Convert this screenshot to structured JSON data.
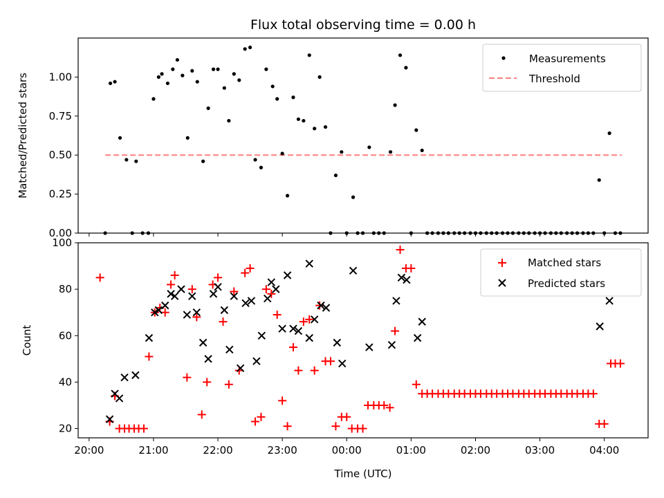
{
  "figure": {
    "title": "Flux total observing time = 0.00 h",
    "xlabel": "Time (UTC)",
    "x_ticks": [
      {
        "h": 20,
        "label": "20:00"
      },
      {
        "h": 21,
        "label": "21:00"
      },
      {
        "h": 22,
        "label": "22:00"
      },
      {
        "h": 23,
        "label": "23:00"
      },
      {
        "h": 24,
        "label": "00:00"
      },
      {
        "h": 25,
        "label": "01:00"
      },
      {
        "h": 26,
        "label": "02:00"
      },
      {
        "h": 27,
        "label": "03:00"
      },
      {
        "h": 28,
        "label": "04:00"
      }
    ],
    "xlim": [
      19.83,
      28.68
    ]
  },
  "colors": {
    "measurements": "#000000",
    "threshold": "#ff7f7f",
    "matched": "#ff0000",
    "predicted": "#000000"
  },
  "chart_data": [
    {
      "type": "scatter",
      "ylabel": "Matched/Predicted stars",
      "ylim": [
        0,
        1.25
      ],
      "y_ticks": [
        {
          "v": 0,
          "label": "0.00"
        },
        {
          "v": 0.25,
          "label": "0.25"
        },
        {
          "v": 0.5,
          "label": "0.50"
        },
        {
          "v": 0.75,
          "label": "0.75"
        },
        {
          "v": 1.0,
          "label": "1.00"
        }
      ],
      "legend_position": "top-right",
      "threshold": {
        "name": "Threshold",
        "value": 0.5,
        "x_range": [
          20.25,
          28.27
        ]
      },
      "series": [
        {
          "name": "Measurements",
          "marker": "dot",
          "points": [
            [
              20.25,
              0.0
            ],
            [
              20.33,
              0.96
            ],
            [
              20.4,
              0.97
            ],
            [
              20.48,
              0.61
            ],
            [
              20.58,
              0.47
            ],
            [
              20.67,
              0.0
            ],
            [
              20.73,
              0.46
            ],
            [
              20.83,
              0.0
            ],
            [
              20.92,
              0.0
            ],
            [
              21.0,
              0.86
            ],
            [
              21.08,
              1.0
            ],
            [
              21.13,
              1.02
            ],
            [
              21.22,
              0.96
            ],
            [
              21.3,
              1.05
            ],
            [
              21.37,
              1.11
            ],
            [
              21.45,
              1.01
            ],
            [
              21.53,
              0.61
            ],
            [
              21.6,
              1.04
            ],
            [
              21.68,
              0.97
            ],
            [
              21.77,
              0.46
            ],
            [
              21.85,
              0.8
            ],
            [
              21.93,
              1.05
            ],
            [
              22.0,
              1.05
            ],
            [
              22.1,
              0.93
            ],
            [
              22.17,
              0.72
            ],
            [
              22.25,
              1.02
            ],
            [
              22.33,
              0.98
            ],
            [
              22.42,
              1.18
            ],
            [
              22.5,
              1.19
            ],
            [
              22.58,
              0.47
            ],
            [
              22.67,
              0.42
            ],
            [
              22.75,
              1.05
            ],
            [
              22.85,
              0.94
            ],
            [
              22.92,
              0.86
            ],
            [
              23.0,
              0.51
            ],
            [
              23.08,
              0.24
            ],
            [
              23.17,
              0.87
            ],
            [
              23.25,
              0.73
            ],
            [
              23.33,
              0.72
            ],
            [
              23.42,
              1.14
            ],
            [
              23.5,
              0.67
            ],
            [
              23.58,
              1.0
            ],
            [
              23.67,
              0.68
            ],
            [
              23.75,
              0.0
            ],
            [
              23.83,
              0.37
            ],
            [
              23.92,
              0.52
            ],
            [
              24.0,
              0.0
            ],
            [
              24.1,
              0.23
            ],
            [
              24.17,
              0.0
            ],
            [
              24.25,
              0.0
            ],
            [
              24.35,
              0.55
            ],
            [
              24.42,
              0.0
            ],
            [
              24.5,
              0.0
            ],
            [
              24.58,
              0.0
            ],
            [
              24.68,
              0.52
            ],
            [
              24.75,
              0.82
            ],
            [
              24.83,
              1.14
            ],
            [
              24.92,
              1.06
            ],
            [
              25.0,
              0.0
            ],
            [
              25.08,
              0.66
            ],
            [
              25.17,
              0.53
            ],
            [
              25.25,
              0.0
            ],
            [
              25.33,
              0.0
            ],
            [
              25.42,
              0.0
            ],
            [
              25.5,
              0.0
            ],
            [
              25.58,
              0.0
            ],
            [
              25.67,
              0.0
            ],
            [
              25.75,
              0.0
            ],
            [
              25.83,
              0.0
            ],
            [
              25.92,
              0.0
            ],
            [
              26.0,
              0.0
            ],
            [
              26.08,
              0.0
            ],
            [
              26.17,
              0.0
            ],
            [
              26.25,
              0.0
            ],
            [
              26.33,
              0.0
            ],
            [
              26.42,
              0.0
            ],
            [
              26.5,
              0.0
            ],
            [
              26.58,
              0.0
            ],
            [
              26.67,
              0.0
            ],
            [
              26.75,
              0.0
            ],
            [
              26.83,
              0.0
            ],
            [
              26.92,
              0.0
            ],
            [
              27.0,
              0.0
            ],
            [
              27.08,
              0.0
            ],
            [
              27.17,
              0.0
            ],
            [
              27.25,
              0.0
            ],
            [
              27.33,
              0.0
            ],
            [
              27.42,
              0.0
            ],
            [
              27.5,
              0.0
            ],
            [
              27.58,
              0.0
            ],
            [
              27.67,
              0.0
            ],
            [
              27.75,
              0.0
            ],
            [
              27.83,
              0.0
            ],
            [
              27.92,
              0.34
            ],
            [
              28.0,
              0.0
            ],
            [
              28.08,
              0.64
            ],
            [
              28.17,
              0.0
            ],
            [
              28.25,
              0.0
            ]
          ]
        }
      ]
    },
    {
      "type": "scatter",
      "ylabel": "Count",
      "ylim": [
        16,
        100
      ],
      "y_ticks": [
        {
          "v": 20,
          "label": "20"
        },
        {
          "v": 40,
          "label": "40"
        },
        {
          "v": 60,
          "label": "60"
        },
        {
          "v": 80,
          "label": "80"
        },
        {
          "v": 100,
          "label": "100"
        }
      ],
      "legend_position": "top-right",
      "series": [
        {
          "name": "Matched stars",
          "marker": "plus",
          "points": [
            [
              20.17,
              85
            ],
            [
              20.32,
              23
            ],
            [
              20.4,
              34
            ],
            [
              20.47,
              20
            ],
            [
              20.55,
              20
            ],
            [
              20.62,
              20
            ],
            [
              20.7,
              20
            ],
            [
              20.77,
              20
            ],
            [
              20.85,
              20
            ],
            [
              20.93,
              51
            ],
            [
              21.02,
              70
            ],
            [
              21.1,
              72
            ],
            [
              21.18,
              70
            ],
            [
              21.27,
              82
            ],
            [
              21.33,
              86
            ],
            [
              21.52,
              42
            ],
            [
              21.6,
              80
            ],
            [
              21.67,
              68
            ],
            [
              21.75,
              26
            ],
            [
              21.83,
              40
            ],
            [
              21.92,
              82
            ],
            [
              22.0,
              85
            ],
            [
              22.08,
              66
            ],
            [
              22.17,
              39
            ],
            [
              22.25,
              79
            ],
            [
              22.33,
              45
            ],
            [
              22.42,
              87
            ],
            [
              22.5,
              89
            ],
            [
              22.58,
              23
            ],
            [
              22.67,
              25
            ],
            [
              22.75,
              80
            ],
            [
              22.83,
              78
            ],
            [
              22.92,
              69
            ],
            [
              23.0,
              32
            ],
            [
              23.08,
              21
            ],
            [
              23.17,
              55
            ],
            [
              23.25,
              45
            ],
            [
              23.33,
              66
            ],
            [
              23.42,
              67
            ],
            [
              23.5,
              45
            ],
            [
              23.58,
              73
            ],
            [
              23.67,
              49
            ],
            [
              23.75,
              49
            ],
            [
              23.83,
              21
            ],
            [
              23.92,
              25
            ],
            [
              24.0,
              25
            ],
            [
              24.08,
              20
            ],
            [
              24.17,
              20
            ],
            [
              24.25,
              20
            ],
            [
              24.33,
              30
            ],
            [
              24.42,
              30
            ],
            [
              24.5,
              30
            ],
            [
              24.58,
              30
            ],
            [
              24.67,
              29
            ],
            [
              24.75,
              62
            ],
            [
              24.83,
              97
            ],
            [
              24.92,
              89
            ],
            [
              25.0,
              89
            ],
            [
              25.08,
              39
            ],
            [
              25.17,
              35
            ],
            [
              25.25,
              35
            ],
            [
              25.33,
              35
            ],
            [
              25.42,
              35
            ],
            [
              25.5,
              35
            ],
            [
              25.58,
              35
            ],
            [
              25.67,
              35
            ],
            [
              25.75,
              35
            ],
            [
              25.83,
              35
            ],
            [
              25.92,
              35
            ],
            [
              26.0,
              35
            ],
            [
              26.08,
              35
            ],
            [
              26.17,
              35
            ],
            [
              26.25,
              35
            ],
            [
              26.33,
              35
            ],
            [
              26.42,
              35
            ],
            [
              26.5,
              35
            ],
            [
              26.58,
              35
            ],
            [
              26.67,
              35
            ],
            [
              26.75,
              35
            ],
            [
              26.83,
              35
            ],
            [
              26.92,
              35
            ],
            [
              27.0,
              35
            ],
            [
              27.08,
              35
            ],
            [
              27.17,
              35
            ],
            [
              27.25,
              35
            ],
            [
              27.33,
              35
            ],
            [
              27.42,
              35
            ],
            [
              27.5,
              35
            ],
            [
              27.58,
              35
            ],
            [
              27.67,
              35
            ],
            [
              27.75,
              35
            ],
            [
              27.83,
              35
            ],
            [
              27.92,
              22
            ],
            [
              28.0,
              22
            ],
            [
              28.1,
              48
            ],
            [
              28.17,
              48
            ],
            [
              28.25,
              48
            ]
          ]
        },
        {
          "name": "Predicted stars",
          "marker": "x",
          "points": [
            [
              20.32,
              24
            ],
            [
              20.4,
              35
            ],
            [
              20.47,
              33
            ],
            [
              20.55,
              42
            ],
            [
              20.72,
              43
            ],
            [
              20.93,
              59
            ],
            [
              21.02,
              70
            ],
            [
              21.08,
              71
            ],
            [
              21.18,
              73
            ],
            [
              21.27,
              78
            ],
            [
              21.33,
              77
            ],
            [
              21.43,
              80
            ],
            [
              21.52,
              69
            ],
            [
              21.6,
              77
            ],
            [
              21.67,
              70
            ],
            [
              21.77,
              57
            ],
            [
              21.85,
              50
            ],
            [
              21.93,
              78
            ],
            [
              22.0,
              81
            ],
            [
              22.1,
              71
            ],
            [
              22.18,
              54
            ],
            [
              22.25,
              77
            ],
            [
              22.35,
              46
            ],
            [
              22.43,
              74
            ],
            [
              22.52,
              75
            ],
            [
              22.6,
              49
            ],
            [
              22.68,
              60
            ],
            [
              22.77,
              76
            ],
            [
              22.83,
              83
            ],
            [
              22.9,
              80
            ],
            [
              23.0,
              63
            ],
            [
              23.08,
              86
            ],
            [
              23.17,
              63
            ],
            [
              23.25,
              62
            ],
            [
              23.42,
              91
            ],
            [
              23.42,
              59
            ],
            [
              23.5,
              67
            ],
            [
              23.6,
              73
            ],
            [
              23.68,
              72
            ],
            [
              23.85,
              57
            ],
            [
              23.93,
              48
            ],
            [
              24.1,
              88
            ],
            [
              24.35,
              55
            ],
            [
              24.7,
              56
            ],
            [
              24.77,
              75
            ],
            [
              24.85,
              85
            ],
            [
              24.93,
              84
            ],
            [
              25.1,
              59
            ],
            [
              25.17,
              66
            ],
            [
              27.93,
              64
            ],
            [
              28.08,
              75
            ]
          ]
        }
      ]
    }
  ]
}
